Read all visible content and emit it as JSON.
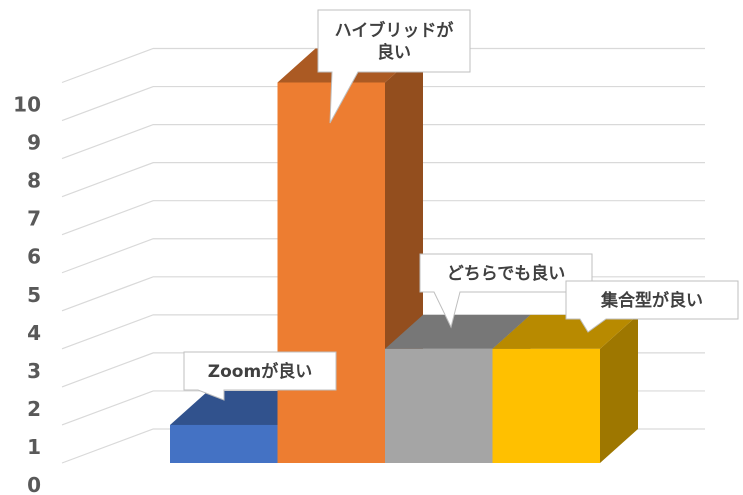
{
  "chart_data": {
    "type": "bar",
    "style": "3d-column",
    "categories": [
      "Zoomが良い",
      "ハイブリッドが良い",
      "どちらでも良い",
      "集合型が良い"
    ],
    "values": [
      1,
      10,
      3,
      3
    ],
    "colors": [
      "#4472C4",
      "#ED7D31",
      "#A5A5A5",
      "#FFC000"
    ],
    "ylim": [
      0,
      10
    ],
    "yticks": [
      "0",
      "1",
      "2",
      "3",
      "4",
      "5",
      "6",
      "7",
      "8",
      "9",
      "10"
    ],
    "grid": true,
    "data_labels": [
      "Zoomが良い",
      "ハイブリッドが\n良い",
      "どちらでも良い",
      "集合型が良い"
    ],
    "title": "",
    "xlabel": "",
    "ylabel": ""
  }
}
